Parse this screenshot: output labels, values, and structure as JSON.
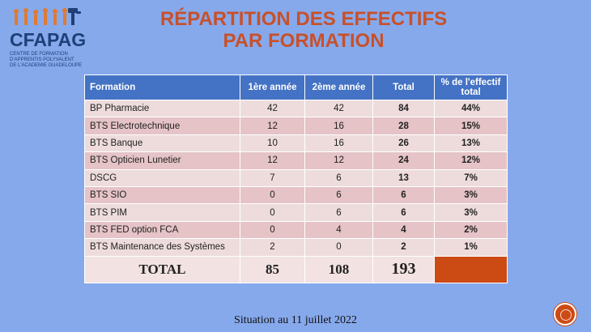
{
  "logo": {
    "word": "CFAPAG",
    "sub_line1": "CENTRE DE FORMATION",
    "sub_line2": "D'APPRENTIS POLYVALENT",
    "sub_line3": "DE L'ACADEMIE GUADELOUPE"
  },
  "title": {
    "line1": "RÉPARTITION DES EFFECTIFS",
    "line2": "PAR FORMATION"
  },
  "table": {
    "headers": [
      "Formation",
      "1ère année",
      "2ème année",
      "Total",
      "% de l'effectif total"
    ],
    "rows": [
      [
        "BP Pharmacie",
        "42",
        "42",
        "84",
        "44%"
      ],
      [
        "BTS Electrotechnique",
        "12",
        "16",
        "28",
        "15%"
      ],
      [
        "BTS Banque",
        "10",
        "16",
        "26",
        "13%"
      ],
      [
        "BTS Opticien Lunetier",
        "12",
        "12",
        "24",
        "12%"
      ],
      [
        "DSCG",
        "7",
        "6",
        "13",
        "7%"
      ],
      [
        "BTS SIO",
        "0",
        "6",
        "6",
        "3%"
      ],
      [
        "BTS PIM",
        "0",
        "6",
        "6",
        "3%"
      ],
      [
        "BTS FED option FCA",
        "0",
        "4",
        "4",
        "2%"
      ],
      [
        "BTS Maintenance des  Systèmes",
        "2",
        "0",
        "2",
        "1%"
      ]
    ],
    "total": [
      "TOTAL",
      "85",
      "108",
      "193",
      ""
    ]
  },
  "footer": "Situation au 11 juillet 2022",
  "colors": {
    "background": "#86a9ec",
    "title": "#c8502a",
    "header": "#4472c4",
    "accent": "#cc4a14"
  }
}
